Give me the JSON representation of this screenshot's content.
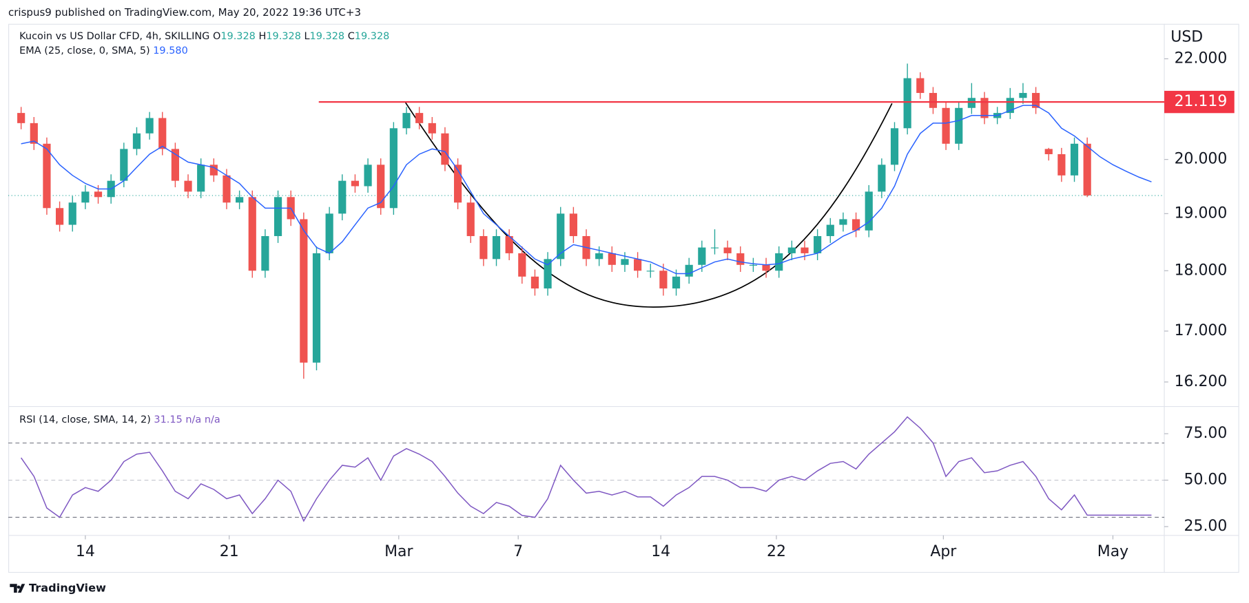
{
  "header": {
    "text": "crispus9 published on TradingView.com, May 20, 2022 19:36 UTC+3"
  },
  "footer": {
    "brand": "TradingView"
  },
  "chart_data": {
    "type": "candlestick",
    "title": "Kucoin vs US Dollar CFD, 4h, SKILLING",
    "ohlc_legend": [
      {
        "label": "O",
        "value": 19.328
      },
      {
        "label": "H",
        "value": 19.328
      },
      {
        "label": "L",
        "value": 19.328
      },
      {
        "label": "C",
        "value": 19.328
      }
    ],
    "y_axis_label": "USD",
    "log_scale": true,
    "up_color": "#26a69a",
    "down_color": "#ef5350",
    "x": [
      -5,
      -4,
      -3,
      -2,
      -1,
      0,
      1,
      2,
      3,
      4,
      5,
      6,
      7,
      8,
      9,
      10,
      11,
      12,
      13,
      14,
      15,
      16,
      17,
      18,
      19,
      20,
      21,
      22,
      23,
      24,
      25,
      26,
      27,
      28,
      29,
      30,
      31,
      32,
      33,
      34,
      35,
      36,
      37,
      38,
      39,
      40,
      41,
      42,
      43,
      44,
      45,
      46,
      47,
      48,
      49,
      50,
      51,
      52,
      53,
      54,
      55,
      56,
      57,
      58,
      59,
      60,
      61,
      62,
      63,
      64,
      65,
      66,
      67,
      68,
      69,
      70,
      71,
      72,
      73,
      74,
      75,
      76,
      77,
      78
    ],
    "open": [
      20.9,
      20.7,
      20.3,
      19.1,
      18.8,
      19.2,
      19.4,
      19.3,
      19.6,
      20.2,
      20.5,
      20.8,
      20.2,
      19.6,
      19.4,
      19.9,
      19.7,
      19.2,
      19.3,
      18.0,
      18.6,
      19.3,
      18.9,
      16.5,
      18.3,
      19.0,
      19.6,
      19.5,
      19.9,
      19.1,
      20.6,
      20.9,
      20.7,
      20.5,
      19.9,
      19.2,
      18.6,
      18.2,
      18.6,
      18.3,
      17.9,
      17.7,
      18.2,
      19.0,
      18.6,
      18.2,
      18.3,
      18.1,
      18.2,
      18.0,
      18.0,
      17.7,
      17.9,
      18.1,
      18.4,
      18.4,
      18.3,
      18.1,
      18.1,
      18.0,
      18.3,
      18.4,
      18.3,
      18.6,
      18.8,
      18.9,
      18.7,
      19.4,
      19.9,
      20.6,
      21.6,
      21.3,
      21.0,
      20.3,
      21.0,
      21.2,
      20.8,
      20.9,
      21.2,
      21.3,
      20.2,
      20.1,
      19.7,
      20.3
    ],
    "high": [
      21.02,
      20.82,
      20.42,
      19.22,
      19.32,
      19.52,
      19.52,
      19.72,
      20.32,
      20.62,
      20.92,
      20.92,
      20.32,
      19.72,
      20.02,
      20.02,
      19.82,
      19.42,
      19.42,
      18.72,
      19.42,
      19.42,
      19.02,
      18.42,
      19.12,
      19.72,
      19.72,
      20.02,
      20.02,
      20.72,
      21.02,
      21.02,
      20.82,
      20.62,
      20.02,
      19.32,
      18.72,
      18.72,
      18.72,
      18.42,
      18.02,
      18.32,
      19.12,
      19.12,
      18.72,
      18.42,
      18.42,
      18.32,
      18.32,
      18.12,
      18.12,
      18.02,
      18.22,
      18.52,
      18.72,
      18.52,
      18.42,
      18.22,
      18.22,
      18.42,
      18.52,
      18.52,
      18.72,
      18.92,
      19.02,
      19.02,
      19.52,
      20.02,
      20.72,
      21.9,
      21.72,
      21.42,
      21.12,
      21.12,
      21.5,
      21.32,
      21.02,
      21.4,
      21.5,
      21.42,
      20.22,
      20.22,
      20.42,
      20.42
    ],
    "low": [
      20.58,
      20.18,
      18.98,
      18.68,
      18.68,
      19.08,
      19.18,
      19.18,
      19.48,
      20.08,
      20.38,
      20.08,
      19.48,
      19.28,
      19.28,
      19.58,
      19.08,
      19.08,
      17.88,
      17.88,
      18.48,
      18.78,
      16.25,
      16.38,
      18.18,
      18.88,
      19.38,
      19.38,
      18.98,
      18.98,
      20.48,
      20.58,
      20.38,
      19.78,
      19.08,
      18.48,
      18.08,
      18.08,
      18.18,
      17.78,
      17.58,
      17.58,
      18.08,
      18.48,
      18.08,
      18.08,
      17.98,
      17.98,
      17.88,
      17.88,
      17.58,
      17.58,
      17.78,
      17.98,
      18.28,
      18.18,
      17.98,
      17.98,
      17.88,
      17.88,
      18.18,
      18.18,
      18.18,
      18.48,
      18.68,
      18.58,
      18.58,
      19.28,
      19.78,
      20.48,
      21.18,
      20.88,
      20.18,
      20.18,
      20.88,
      20.68,
      20.68,
      20.78,
      21.08,
      20.88,
      19.98,
      19.58,
      19.58,
      19.3
    ],
    "close": [
      20.7,
      20.3,
      19.1,
      18.8,
      19.2,
      19.4,
      19.3,
      19.6,
      20.2,
      20.5,
      20.8,
      20.2,
      19.6,
      19.4,
      19.9,
      19.7,
      19.2,
      19.3,
      18.0,
      18.6,
      19.3,
      18.9,
      16.5,
      18.3,
      19.0,
      19.6,
      19.5,
      19.9,
      19.1,
      20.6,
      20.9,
      20.7,
      20.5,
      19.9,
      19.2,
      18.6,
      18.2,
      18.6,
      18.3,
      17.9,
      17.7,
      18.2,
      19.0,
      18.6,
      18.2,
      18.3,
      18.1,
      18.2,
      18.0,
      18.0,
      17.7,
      17.9,
      18.1,
      18.4,
      18.4,
      18.3,
      18.1,
      18.1,
      18.0,
      18.3,
      18.4,
      18.3,
      18.6,
      18.8,
      18.9,
      18.7,
      19.4,
      19.9,
      20.6,
      21.6,
      21.3,
      21.0,
      20.3,
      21.0,
      21.2,
      20.8,
      20.9,
      21.2,
      21.3,
      21.0,
      20.1,
      19.7,
      20.3,
      19.33
    ],
    "xlim": [
      -6,
      84
    ],
    "xticks": [
      {
        "value": 0,
        "label": "14"
      },
      {
        "value": 11.2,
        "label": "21"
      },
      {
        "value": 24.4,
        "label": "Mar"
      },
      {
        "value": 33.7,
        "label": "7"
      },
      {
        "value": 44.8,
        "label": "14"
      },
      {
        "value": 53.8,
        "label": "22"
      },
      {
        "value": 66.8,
        "label": "Apr"
      },
      {
        "value": 80,
        "label": "May"
      }
    ],
    "ylim": [
      15.84,
      22.74
    ],
    "yticks": [
      {
        "value": 16.2,
        "label": "16.200"
      },
      {
        "value": 17,
        "label": "17.000"
      },
      {
        "value": 18,
        "label": "18.000"
      },
      {
        "value": 19,
        "label": "19.000"
      },
      {
        "value": 20,
        "label": "20.000"
      },
      {
        "value": 22,
        "label": "22.000"
      }
    ],
    "resistance": {
      "value": 21.119,
      "color": "#f23645"
    },
    "last_price": 19.328,
    "indicator_x": [
      -5,
      -4,
      -3,
      -2,
      -1,
      0,
      1,
      2,
      3,
      4,
      5,
      6,
      7,
      8,
      9,
      10,
      11,
      12,
      13,
      14,
      15,
      16,
      17,
      18,
      19,
      20,
      21,
      22,
      23,
      24,
      25,
      26,
      27,
      28,
      29,
      30,
      31,
      32,
      33,
      34,
      35,
      36,
      37,
      38,
      39,
      40,
      41,
      42,
      43,
      44,
      45,
      46,
      47,
      48,
      49,
      50,
      51,
      52,
      53,
      54,
      55,
      56,
      57,
      58,
      59,
      60,
      61,
      62,
      63,
      64,
      65,
      66,
      67,
      68,
      69,
      70,
      71,
      72,
      73,
      74,
      75,
      76,
      77,
      78,
      79,
      80,
      81,
      82,
      83
    ],
    "ema": {
      "name": "EMA (25, close, 0, SMA, 5)",
      "current": {
        "value": 19.58,
        "label": "19.580"
      },
      "color": "#2962ff",
      "values": [
        20.3,
        20.35,
        20.2,
        19.9,
        19.7,
        19.55,
        19.45,
        19.45,
        19.6,
        19.85,
        20.1,
        20.25,
        20.1,
        19.95,
        19.9,
        19.85,
        19.7,
        19.55,
        19.3,
        19.1,
        19.1,
        19.1,
        18.7,
        18.4,
        18.3,
        18.5,
        18.8,
        19.1,
        19.2,
        19.5,
        19.9,
        20.1,
        20.2,
        20.15,
        19.8,
        19.4,
        19.0,
        18.8,
        18.6,
        18.4,
        18.2,
        18.1,
        18.3,
        18.45,
        18.4,
        18.35,
        18.3,
        18.25,
        18.2,
        18.15,
        18.05,
        17.95,
        17.95,
        18.05,
        18.15,
        18.2,
        18.15,
        18.12,
        18.1,
        18.12,
        18.2,
        18.25,
        18.3,
        18.45,
        18.6,
        18.7,
        18.85,
        19.1,
        19.5,
        20.1,
        20.5,
        20.7,
        20.7,
        20.75,
        20.85,
        20.85,
        20.85,
        20.95,
        21.05,
        21.05,
        20.9,
        20.6,
        20.45,
        20.25,
        20.05,
        19.9,
        19.78,
        19.67,
        19.58
      ]
    },
    "rsi": {
      "name": "RSI (14, close, SMA, 14, 2)",
      "current": 31.15,
      "extra": [
        "n/a",
        "n/a"
      ],
      "color": "#7e57c2",
      "values": [
        62,
        52,
        35,
        30,
        42,
        46,
        44,
        50,
        60,
        64,
        65,
        55,
        44,
        40,
        48,
        45,
        40,
        42,
        32,
        40,
        50,
        44,
        28,
        40,
        50,
        58,
        57,
        62,
        50,
        63,
        67,
        64,
        60,
        52,
        43,
        36,
        32,
        38,
        36,
        31,
        30,
        40,
        58,
        50,
        43,
        44,
        42,
        44,
        41,
        41,
        36,
        42,
        46,
        52,
        52,
        50,
        46,
        46,
        44,
        50,
        52,
        50,
        55,
        59,
        60,
        56,
        64,
        70,
        76,
        84,
        78,
        70,
        52,
        60,
        62,
        54,
        55,
        58,
        60,
        52,
        40,
        34,
        42,
        31.15,
        31.15,
        31.15,
        31.15,
        31.15,
        31.15
      ],
      "ylim": [
        20.7,
        89.2
      ],
      "yticks": [
        {
          "value": 25,
          "label": "25.00"
        },
        {
          "value": 50,
          "label": "50.00"
        },
        {
          "value": 75,
          "label": "75.00"
        }
      ],
      "levels": [
        30,
        50,
        70
      ]
    }
  }
}
